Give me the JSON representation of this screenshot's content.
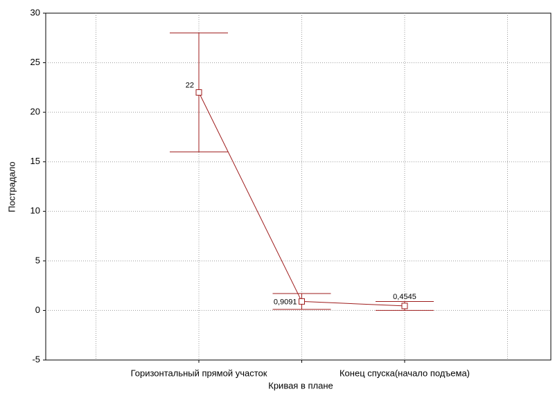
{
  "chart_data": {
    "type": "line",
    "x_label": "Кривая в плане",
    "y_label": "Пострадало",
    "categories": [
      "Горизонтальный прямой участок",
      null,
      "Конец спуска(начало подъема)"
    ],
    "series": [
      {
        "name": "Пострадало",
        "color": "#9e1b1b",
        "values": [
          22,
          0.9091,
          0.4545
        ],
        "value_labels": [
          "22",
          "0,9091",
          "0,4545"
        ],
        "errors": [
          6,
          0.8,
          0.45
        ]
      }
    ],
    "ylim": [
      -5,
      30
    ],
    "yticks": [
      -5,
      0,
      5,
      10,
      15,
      20,
      25,
      30
    ],
    "grid": true
  }
}
